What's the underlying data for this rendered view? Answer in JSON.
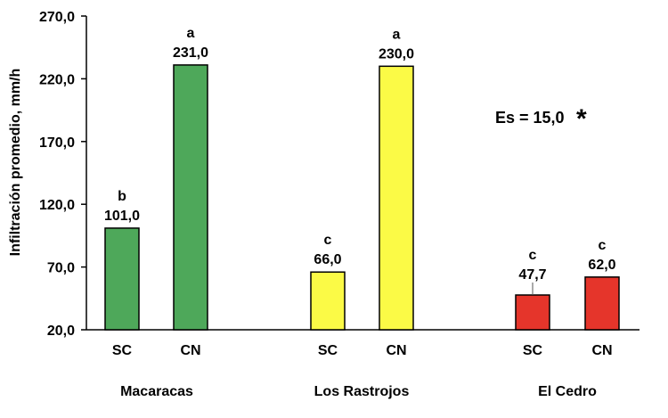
{
  "chart_data": {
    "type": "bar",
    "ylabel": "Infiltración promedio, mm/h",
    "ylim": [
      20,
      270
    ],
    "yticks": [
      "270,0",
      "220,0",
      "170,0",
      "120,0",
      "70,0",
      "20,0"
    ],
    "ytick_values": [
      270,
      220,
      170,
      120,
      70,
      20
    ],
    "grid": false,
    "annotation": {
      "text": "Es = 15,0",
      "mark": "*"
    },
    "groups": [
      {
        "name": "Macaracas",
        "color": "#4ea85a",
        "bars": [
          {
            "category": "SC",
            "value": 101.0,
            "value_label": "101,0",
            "letter": "b"
          },
          {
            "category": "CN",
            "value": 231.0,
            "value_label": "231,0",
            "letter": "a"
          }
        ]
      },
      {
        "name": "Los Rastrojos",
        "color": "#fbfa46",
        "bars": [
          {
            "category": "SC",
            "value": 66.0,
            "value_label": "66,0",
            "letter": "c"
          },
          {
            "category": "CN",
            "value": 230.0,
            "value_label": "230,0",
            "letter": "a"
          }
        ]
      },
      {
        "name": "El Cedro",
        "color": "#e5352b",
        "bars": [
          {
            "category": "SC",
            "value": 47.7,
            "value_label": "47,7",
            "letter": "c"
          },
          {
            "category": "CN",
            "value": 62.0,
            "value_label": "62,0",
            "letter": "c"
          }
        ]
      }
    ]
  }
}
